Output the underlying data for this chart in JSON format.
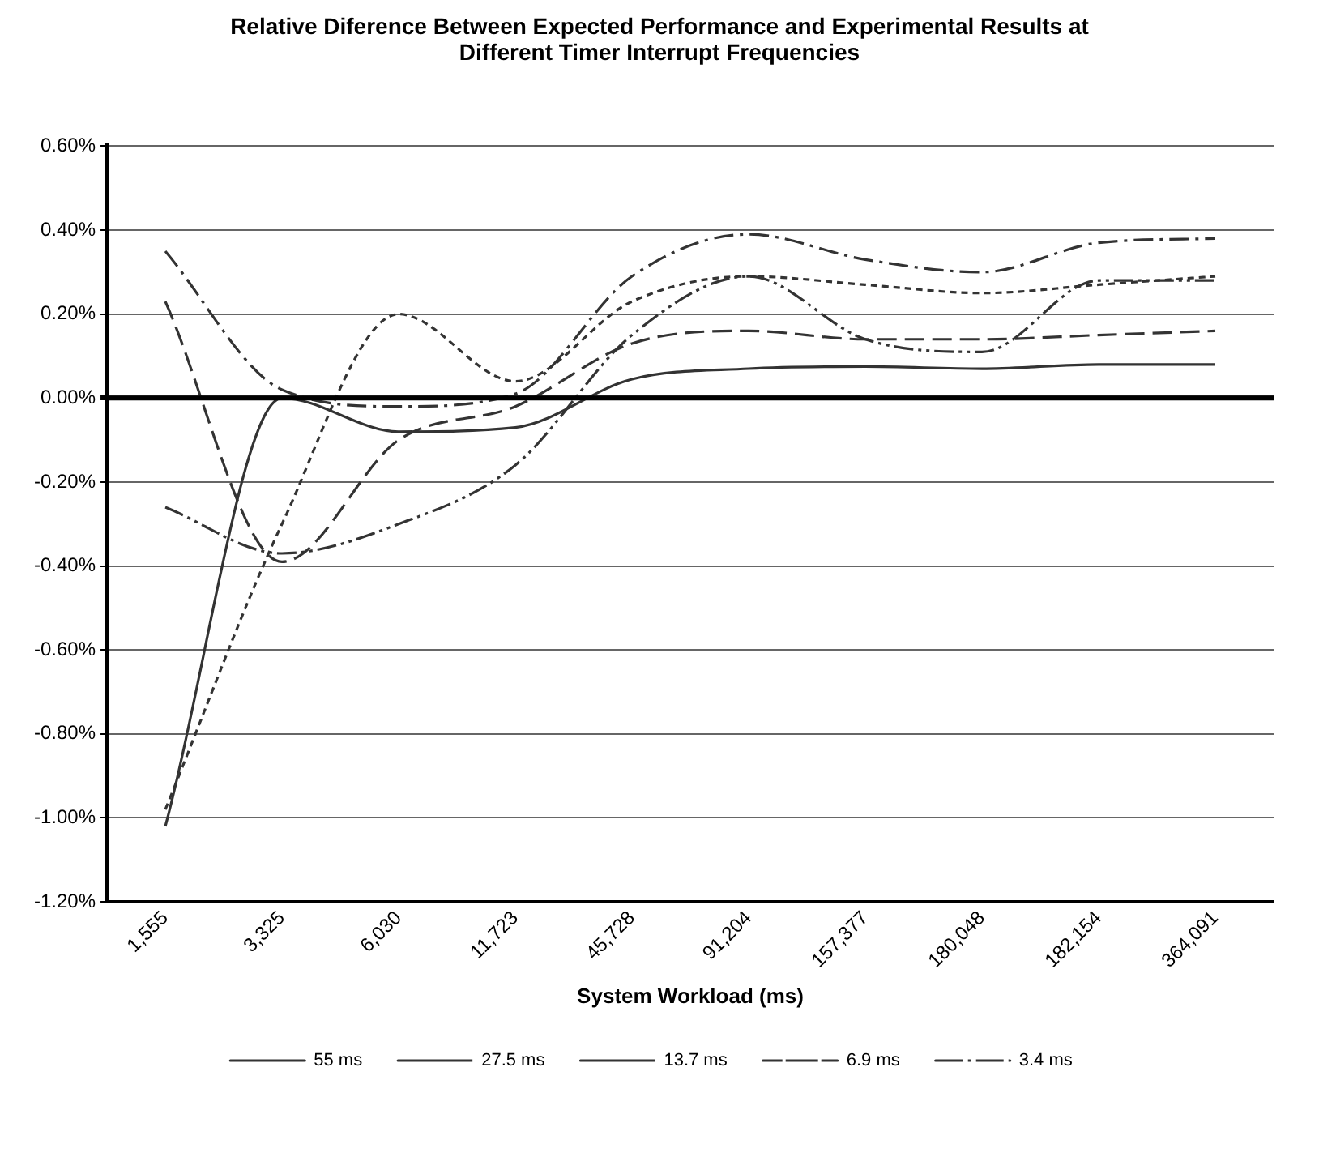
{
  "chart_data": {
    "type": "line",
    "title": "Relative Diference Between Expected Performance and Experimental Results at Different Timer Interrupt Frequencies",
    "xlabel": "System Workload (ms)",
    "categories": [
      "1,555",
      "3,325",
      "6,030",
      "11,723",
      "45,728",
      "91,204",
      "157,377",
      "180,048",
      "182,154",
      "364,091"
    ],
    "ylim": [
      -1.2,
      0.6
    ],
    "yticks": [
      {
        "value": -1.2,
        "label": "-1.20%"
      },
      {
        "value": -1.0,
        "label": "-1.00%"
      },
      {
        "value": -0.8,
        "label": "-0.80%"
      },
      {
        "value": -0.6,
        "label": "-0.60%"
      },
      {
        "value": -0.4,
        "label": "-0.40%"
      },
      {
        "value": -0.2,
        "label": "-0.20%"
      },
      {
        "value": 0,
        "label": "0.00%"
      },
      {
        "value": 0.2,
        "label": "0.20%"
      },
      {
        "value": 0.4,
        "label": "0.40%"
      },
      {
        "value": 0.6,
        "label": "0.60%"
      }
    ],
    "grid": "y",
    "legend": "bottom",
    "marker": "none",
    "series": [
      {
        "name": "55 ms",
        "color": "#333333",
        "line_style": "solid",
        "values": [
          -1.02,
          0.0,
          -0.08,
          -0.07,
          0.045,
          0.07,
          0.075,
          0.07,
          0.08,
          0.08
        ]
      },
      {
        "name": "27.5 ms",
        "color": "#333333",
        "line_style": "dashed",
        "values": [
          0.23,
          -0.39,
          -0.1,
          -0.02,
          0.13,
          0.16,
          0.14,
          0.14,
          0.15,
          0.16
        ]
      },
      {
        "name": "13.7 ms",
        "color": "#333333",
        "line_style": "dotted",
        "values": [
          -0.98,
          -0.3,
          0.2,
          0.04,
          0.23,
          0.29,
          0.27,
          0.25,
          0.27,
          0.29
        ]
      },
      {
        "name": "6.9 ms",
        "color": "#333333",
        "line_style": "dashdot",
        "values": [
          0.35,
          0.02,
          -0.02,
          0.01,
          0.29,
          0.39,
          0.33,
          0.3,
          0.37,
          0.38
        ]
      },
      {
        "name": "3.4 ms",
        "color": "#333333",
        "line_style": "dashdotdot",
        "values": [
          -0.26,
          -0.37,
          -0.3,
          -0.16,
          0.15,
          0.29,
          0.14,
          0.11,
          0.28,
          0.28
        ]
      }
    ]
  }
}
